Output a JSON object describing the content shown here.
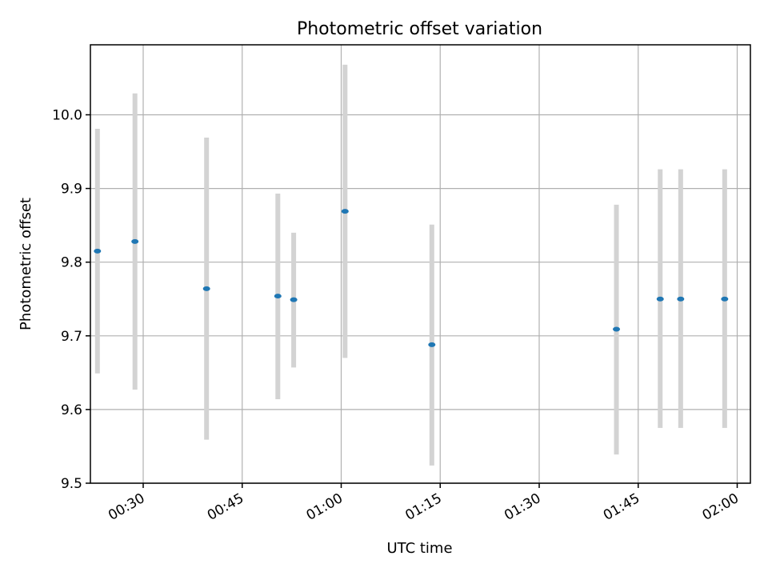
{
  "chart_data": {
    "type": "scatter",
    "title": "Photometric offset variation",
    "xlabel": "UTC time",
    "ylabel": "Photometric offset",
    "xlim": [
      "00:22",
      "02:02"
    ],
    "ylim": [
      9.5,
      10.095
    ],
    "grid": true,
    "x_tick_labels": [
      "00:30",
      "00:45",
      "01:00",
      "01:15",
      "01:30",
      "01:45",
      "02:00"
    ],
    "y_tick_labels": [
      "9.5",
      "9.6",
      "9.7",
      "9.8",
      "9.9",
      "10.0"
    ],
    "x_tick_values": [
      "00:30",
      "00:45",
      "01:00",
      "01:15",
      "01:30",
      "01:45",
      "02:00"
    ],
    "y_tick_values": [
      9.5,
      9.6,
      9.7,
      9.8,
      9.9,
      10.0
    ],
    "colors": {
      "marker": "#1f77b4",
      "errorbar": "#d3d3d3",
      "grid": "#b0b0b0"
    },
    "points": [
      {
        "x": "00:23:04",
        "y": 9.815,
        "ylow": 9.649,
        "yhigh": 9.981
      },
      {
        "x": "00:28:45",
        "y": 9.828,
        "ylow": 9.627,
        "yhigh": 10.029
      },
      {
        "x": "00:39:36",
        "y": 9.764,
        "ylow": 9.559,
        "yhigh": 9.969
      },
      {
        "x": "00:50:24",
        "y": 9.754,
        "ylow": 9.614,
        "yhigh": 9.893
      },
      {
        "x": "00:52:48",
        "y": 9.749,
        "ylow": 9.657,
        "yhigh": 9.84
      },
      {
        "x": "01:00:35",
        "y": 9.869,
        "ylow": 9.67,
        "yhigh": 10.068
      },
      {
        "x": "01:13:44",
        "y": 9.688,
        "ylow": 9.524,
        "yhigh": 9.851
      },
      {
        "x": "01:41:42",
        "y": 9.709,
        "ylow": 9.539,
        "yhigh": 9.878
      },
      {
        "x": "01:48:20",
        "y": 9.75,
        "ylow": 9.575,
        "yhigh": 9.926
      },
      {
        "x": "01:51:26",
        "y": 9.75,
        "ylow": 9.575,
        "yhigh": 9.926
      },
      {
        "x": "01:58:06",
        "y": 9.75,
        "ylow": 9.575,
        "yhigh": 9.926
      }
    ]
  }
}
